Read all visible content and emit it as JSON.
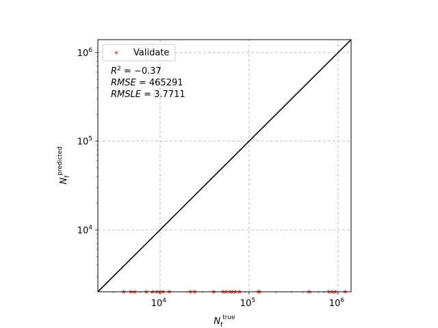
{
  "chart_data": {
    "type": "scatter",
    "x_scale": "log",
    "y_scale": "log",
    "xlim": [
      2000,
      1400000
    ],
    "ylim": [
      2000,
      1400000
    ],
    "grid": true,
    "legend": {
      "entries": [
        "Validate"
      ],
      "position": "top-left"
    },
    "xlabel": {
      "base": "N",
      "sub": "f",
      "sup": "true"
    },
    "ylabel": {
      "base": "N",
      "sub": "f",
      "sup": "predicted"
    },
    "x_ticks": [
      {
        "value": 10000,
        "base": "10",
        "exp": "4"
      },
      {
        "value": 100000,
        "base": "10",
        "exp": "5"
      },
      {
        "value": 1000000,
        "base": "10",
        "exp": "6"
      }
    ],
    "y_ticks": [
      {
        "value": 10000,
        "base": "10",
        "exp": "4"
      },
      {
        "value": 100000,
        "base": "10",
        "exp": "5"
      },
      {
        "value": 1000000,
        "base": "10",
        "exp": "6"
      }
    ],
    "metrics": {
      "r2": {
        "label": "R",
        "sup": "2",
        "value": " = −0.37"
      },
      "rmse": {
        "label": "RMSE",
        "value": " = 465291"
      },
      "rmsle": {
        "label": "RMSLE",
        "value": " = 3.7711"
      }
    },
    "reference_line": {
      "from": [
        2000,
        2000
      ],
      "to": [
        1400000,
        1400000
      ],
      "color": "#000000"
    },
    "series": [
      {
        "name": "Validate",
        "marker": "star",
        "color": "#e8695f",
        "points": [
          [
            3900,
            2000
          ],
          [
            4700,
            2000
          ],
          [
            5200,
            2000
          ],
          [
            7000,
            2000
          ],
          [
            8300,
            2000
          ],
          [
            9300,
            2000
          ],
          [
            10000,
            2000
          ],
          [
            10800,
            2000
          ],
          [
            12700,
            2000
          ],
          [
            22000,
            2000
          ],
          [
            24500,
            2000
          ],
          [
            40000,
            2000
          ],
          [
            51000,
            2000
          ],
          [
            55000,
            2000
          ],
          [
            61000,
            2000
          ],
          [
            65000,
            2000
          ],
          [
            70000,
            2000
          ],
          [
            78000,
            2000
          ],
          [
            127000,
            2000
          ],
          [
            131000,
            2000
          ],
          [
            470000,
            2000
          ],
          [
            790000,
            2000
          ],
          [
            860000,
            2000
          ],
          [
            930000,
            2000
          ],
          [
            1200000,
            2000
          ]
        ]
      }
    ]
  }
}
